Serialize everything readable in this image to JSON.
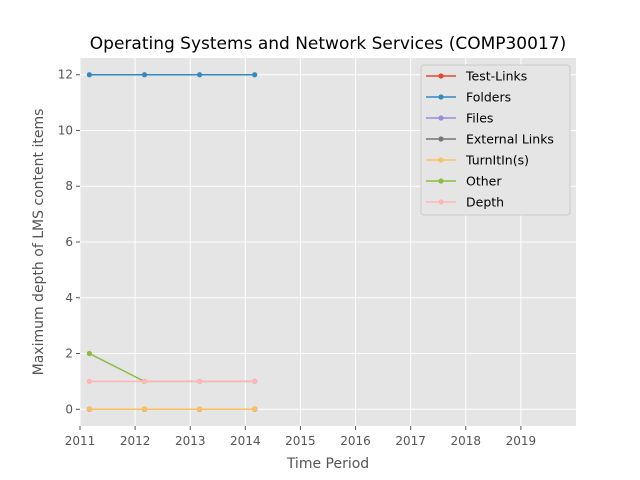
{
  "chart_data": {
    "type": "line",
    "title": "Operating Systems and Network Services (COMP30017)",
    "xlabel": "Time Period",
    "ylabel": "Maximum depth of LMS content items",
    "xlim": [
      2011,
      2020
    ],
    "ylim": [
      -0.6,
      12.6
    ],
    "xticks": [
      2011,
      2012,
      2013,
      2014,
      2015,
      2016,
      2017,
      2018,
      2019
    ],
    "yticks": [
      0,
      2,
      4,
      6,
      8,
      10,
      12
    ],
    "grid": true,
    "legend_position": "top-right",
    "x": [
      2011.17,
      2012.17,
      2013.17,
      2014.17
    ],
    "series": [
      {
        "name": "Test-Links",
        "color": "#E24A33",
        "values": [
          0,
          0,
          0,
          0
        ]
      },
      {
        "name": "Folders",
        "color": "#348ABD",
        "values": [
          12,
          12,
          12,
          12
        ]
      },
      {
        "name": "Files",
        "color": "#988ED5",
        "values": [
          0,
          0,
          0,
          0
        ]
      },
      {
        "name": "External Links",
        "color": "#777777",
        "values": [
          0,
          0,
          0,
          0
        ]
      },
      {
        "name": "TurnItIn(s)",
        "color": "#FBC15E",
        "values": [
          0,
          0,
          0,
          0
        ]
      },
      {
        "name": "Other",
        "color": "#8EBA42",
        "values": [
          2,
          1,
          1,
          1
        ]
      },
      {
        "name": "Depth",
        "color": "#FFB5B8",
        "values": [
          1,
          1,
          1,
          1
        ]
      }
    ]
  }
}
